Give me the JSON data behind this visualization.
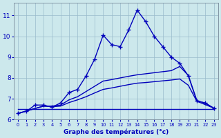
{
  "background_color": "#cce8ec",
  "line_color": "#0000bb",
  "grid_color": "#99bbcc",
  "xlabel": "Graphe des températures (°c)",
  "xlim": [
    -0.5,
    23.5
  ],
  "ylim": [
    6.0,
    11.6
  ],
  "yticks": [
    6,
    7,
    8,
    9,
    10,
    11
  ],
  "xticks": [
    0,
    1,
    2,
    3,
    4,
    5,
    6,
    7,
    8,
    9,
    10,
    11,
    12,
    13,
    14,
    15,
    16,
    17,
    18,
    19,
    20,
    21,
    22,
    23
  ],
  "main_x": [
    0,
    1,
    2,
    3,
    4,
    5,
    6,
    7,
    8,
    9,
    10,
    11,
    12,
    13,
    14,
    15,
    16,
    17,
    18,
    19,
    20,
    21,
    22,
    23
  ],
  "main_y": [
    6.3,
    6.4,
    6.7,
    6.7,
    6.6,
    6.8,
    7.3,
    7.45,
    8.1,
    8.9,
    10.05,
    9.6,
    9.5,
    10.3,
    11.25,
    10.7,
    10.0,
    9.5,
    9.0,
    8.7,
    8.1,
    6.9,
    6.8,
    6.55
  ],
  "line2_x": [
    0,
    3,
    4,
    5,
    6,
    7,
    8,
    9,
    10,
    11,
    12,
    13,
    14,
    15,
    16,
    17,
    18,
    19,
    20,
    21,
    22,
    23
  ],
  "line2_y": [
    6.3,
    6.65,
    6.65,
    6.7,
    6.95,
    7.1,
    7.35,
    7.6,
    7.85,
    7.92,
    8.0,
    8.08,
    8.15,
    8.2,
    8.25,
    8.3,
    8.35,
    8.55,
    8.12,
    6.92,
    6.78,
    6.55
  ],
  "line3_x": [
    0,
    3,
    4,
    5,
    6,
    7,
    8,
    9,
    10,
    11,
    12,
    13,
    14,
    15,
    16,
    17,
    18,
    19,
    20,
    21,
    22,
    23
  ],
  "line3_y": [
    6.3,
    6.65,
    6.62,
    6.65,
    6.82,
    6.95,
    7.1,
    7.28,
    7.45,
    7.52,
    7.6,
    7.68,
    7.75,
    7.78,
    7.82,
    7.86,
    7.9,
    7.95,
    7.65,
    6.88,
    6.72,
    6.55
  ],
  "line4_x": [
    0,
    20,
    21,
    22,
    23
  ],
  "line4_y": [
    6.5,
    6.5,
    6.5,
    6.5,
    6.5
  ]
}
